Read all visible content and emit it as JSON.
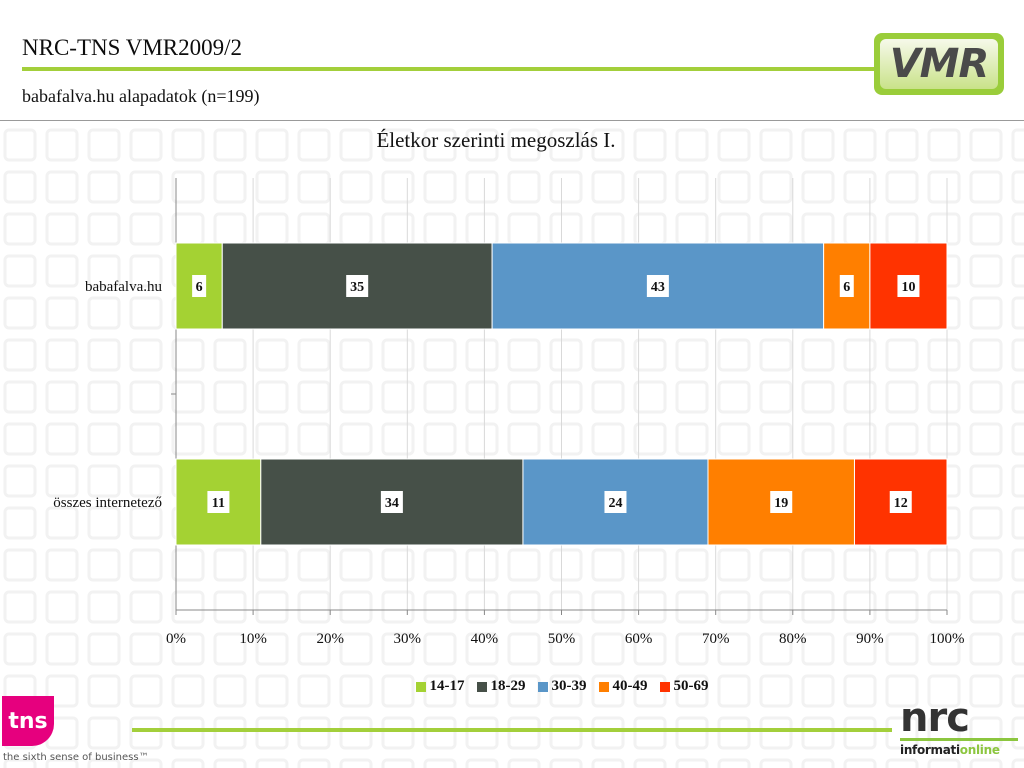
{
  "header": {
    "title": "NRC-TNS VMR2009/2",
    "subtitle": "babafalva.hu alapadatok (n=199)"
  },
  "logos": {
    "vmr": "VMR",
    "tns": "tns",
    "tns_tagline": "the sixth sense of business™",
    "nrc": "nrc",
    "nrc_sub_a": "informati",
    "nrc_sub_b": "online"
  },
  "colors": {
    "accent_green": "#a3cf3b",
    "series": [
      "#a4d233",
      "#465048",
      "#5a96c8",
      "#ff7f00",
      "#ff3300"
    ]
  },
  "chart_data": {
    "type": "bar",
    "orientation": "horizontal",
    "stacked": "percent",
    "title": "Életkor szerinti megoszlás I.",
    "categories": [
      "babafalva.hu",
      "összes internetező"
    ],
    "series": [
      {
        "name": "14-17",
        "values": [
          6,
          11
        ]
      },
      {
        "name": "18-29",
        "values": [
          35,
          34
        ]
      },
      {
        "name": "30-39",
        "values": [
          43,
          24
        ]
      },
      {
        "name": "40-49",
        "values": [
          6,
          19
        ]
      },
      {
        "name": "50-69",
        "values": [
          10,
          12
        ]
      }
    ],
    "xlim": [
      0,
      100
    ],
    "xticks": [
      "0%",
      "10%",
      "20%",
      "30%",
      "40%",
      "50%",
      "60%",
      "70%",
      "80%",
      "90%",
      "100%"
    ],
    "grid": true,
    "legend": "bottom"
  }
}
